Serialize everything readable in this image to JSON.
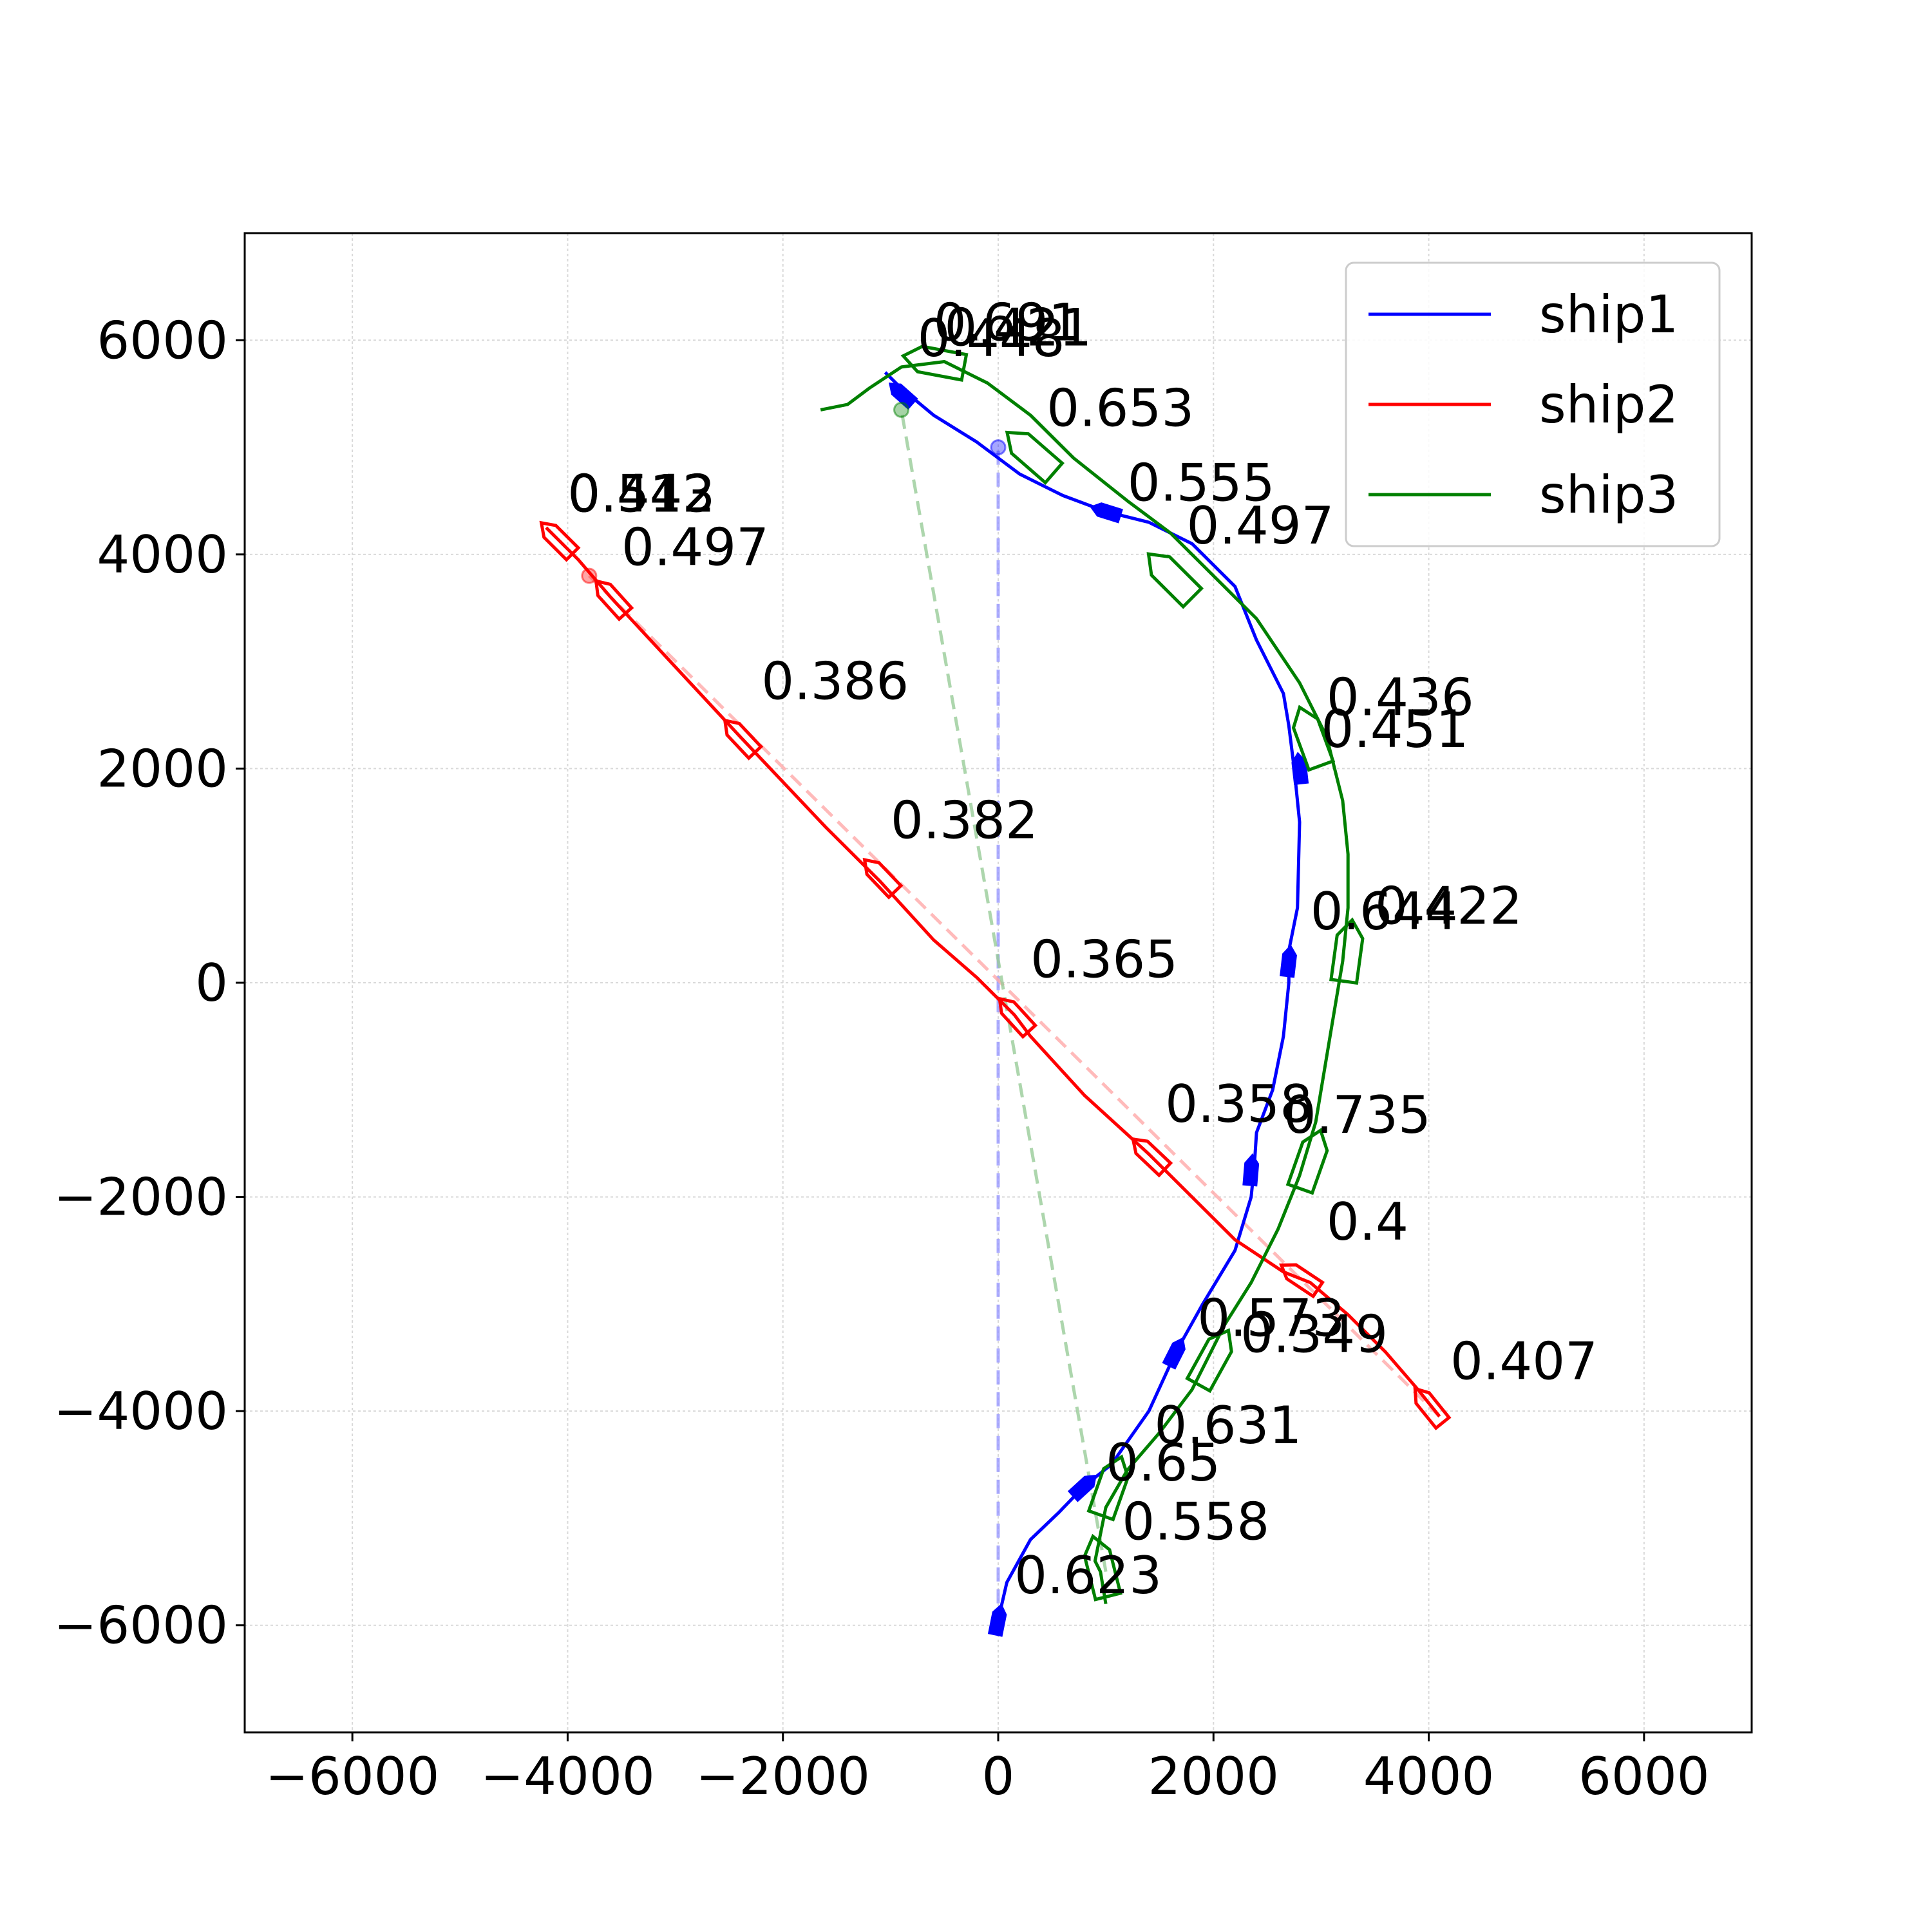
{
  "chart_data": {
    "type": "line",
    "title": "",
    "xlabel": "",
    "ylabel": "",
    "xlim": [
      -7000,
      7000
    ],
    "ylim": [
      -7000,
      7000
    ],
    "xticks": [
      -6000,
      -4000,
      -2000,
      0,
      2000,
      4000,
      6000
    ],
    "yticks": [
      -6000,
      -4000,
      -2000,
      0,
      2000,
      4000,
      6000
    ],
    "xtick_labels": [
      "−6000",
      "−4000",
      "−2000",
      "0",
      "2000",
      "4000",
      "6000"
    ],
    "ytick_labels": [
      "−6000",
      "−4000",
      "−2000",
      "0",
      "2000",
      "4000",
      "6000"
    ],
    "grid": true,
    "legend_position": "top-right",
    "series": [
      {
        "name": "ship1",
        "color": "#0000ff",
        "x": [
          0,
          0,
          80,
          300,
          560,
          800,
          1050,
          1400,
          1650,
          1900,
          2200,
          2350,
          2380,
          2400,
          2550,
          2650,
          2700,
          2700,
          2780,
          2800,
          2750,
          2700,
          2650,
          2400,
          2200,
          1800,
          1400,
          1000,
          600,
          200,
          -200,
          -600,
          -900,
          -1050
        ],
        "y": [
          -6000,
          -5950,
          -5600,
          -5200,
          -4950,
          -4700,
          -4500,
          -4000,
          -3450,
          -3000,
          -2500,
          -2000,
          -1700,
          -1400,
          -1000,
          -500,
          0,
          300,
          700,
          1500,
          2000,
          2400,
          2700,
          3200,
          3700,
          4100,
          4300,
          4400,
          4550,
          4750,
          5050,
          5300,
          5550,
          5700
        ],
        "markers": [
          {
            "x": 0,
            "y": -5950
          },
          {
            "x": 800,
            "y": -4700
          },
          {
            "x": 1650,
            "y": -3450
          },
          {
            "x": 2350,
            "y": -1750
          },
          {
            "x": 2700,
            "y": 200
          },
          {
            "x": 2800,
            "y": 2000
          },
          {
            "x": 1000,
            "y": 4400
          },
          {
            "x": -900,
            "y": 5500
          }
        ],
        "start": {
          "x": 0,
          "y": 5000
        }
      },
      {
        "name": "ship2",
        "color": "#ff0000",
        "x": [
          4100,
          3900,
          3600,
          3250,
          2900,
          2650,
          2200,
          1800,
          1400,
          800,
          300,
          150,
          -200,
          -600,
          -1100,
          -1600,
          -2400,
          -3000,
          -3600,
          -3900,
          -4100,
          -4200
        ],
        "y": [
          -4050,
          -3800,
          -3450,
          -3100,
          -2800,
          -2700,
          -2400,
          -2000,
          -1600,
          -1050,
          -500,
          -300,
          50,
          400,
          950,
          1450,
          2300,
          2950,
          3600,
          3950,
          4150,
          4250
        ],
        "markers": [
          {
            "x": 4000,
            "y": -3950
          },
          {
            "x": 2800,
            "y": -2750
          },
          {
            "x": 1400,
            "y": -1600
          },
          {
            "x": 150,
            "y": -300
          },
          {
            "x": -1100,
            "y": 1000
          },
          {
            "x": -2400,
            "y": 2300
          },
          {
            "x": -3600,
            "y": 3600
          },
          {
            "x": -4100,
            "y": 4150
          }
        ],
        "start": {
          "x": -3800,
          "y": 3800
        }
      },
      {
        "name": "ship3",
        "color": "#008000",
        "x": [
          1000,
          950,
          900,
          1000,
          1200,
          1500,
          1800,
          2100,
          2350,
          2600,
          2800,
          2950,
          3000,
          3100,
          3200,
          3250,
          3250,
          3200,
          3050,
          2800,
          2400,
          2000,
          1600,
          1200,
          700,
          300,
          -100,
          -500,
          -900,
          -1200,
          -1400,
          -1650
        ],
        "y": [
          -5800,
          -5500,
          -5400,
          -4900,
          -4550,
          -4200,
          -3800,
          -3200,
          -2800,
          -2300,
          -1800,
          -1300,
          -1000,
          -400,
          200,
          700,
          1200,
          1700,
          2300,
          2800,
          3400,
          3800,
          4200,
          4500,
          4900,
          5300,
          5600,
          5800,
          5750,
          5550,
          5400,
          5350
        ],
        "markers": [
          {
            "x": 950,
            "y": -5450
          },
          {
            "x": 1050,
            "y": -4700
          },
          {
            "x": 2000,
            "y": -3500
          },
          {
            "x": 2900,
            "y": -1650
          },
          {
            "x": 3250,
            "y": 300
          },
          {
            "x": 2900,
            "y": 2300
          },
          {
            "x": 1600,
            "y": 3800
          },
          {
            "x": 300,
            "y": 4950
          },
          {
            "x": -600,
            "y": 5800
          }
        ],
        "start": {
          "x": -900,
          "y": 5350
        }
      }
    ],
    "initial_guides": [
      {
        "series": "ship1",
        "color": "#9999ff",
        "x": [
          0,
          0
        ],
        "y": [
          -6000,
          5000
        ]
      },
      {
        "series": "ship2",
        "color": "#ffaaaa",
        "x": [
          4100,
          -3800
        ],
        "y": [
          -4050,
          3800
        ]
      },
      {
        "series": "ship3",
        "color": "#99cc99",
        "x": [
          1000,
          -900
        ],
        "y": [
          -5500,
          5350
        ]
      }
    ],
    "annotations": [
      {
        "text": "0.623",
        "x": 150,
        "y": -5700
      },
      {
        "text": "0.65",
        "x": 1000,
        "y": -4650
      },
      {
        "text": "0.573",
        "x": 1850,
        "y": -3300
      },
      {
        "text": "0.358",
        "x": 1550,
        "y": -1300
      },
      {
        "text": "0.644",
        "x": 2900,
        "y": 500
      },
      {
        "text": "0.451",
        "x": 3000,
        "y": 2200
      },
      {
        "text": "0.555",
        "x": 1200,
        "y": 4500
      },
      {
        "text": "0.421",
        "x": -500,
        "y": 5950
      },
      {
        "text": "0.407",
        "x": 4200,
        "y": -3700
      },
      {
        "text": "0.4",
        "x": 3050,
        "y": -2400
      },
      {
        "text": "0.365",
        "x": 300,
        "y": 50
      },
      {
        "text": "0.382",
        "x": -1000,
        "y": 1350
      },
      {
        "text": "0.386",
        "x": -2200,
        "y": 2650
      },
      {
        "text": "0.497",
        "x": -3500,
        "y": 3900
      },
      {
        "text": "0.543",
        "x": -4000,
        "y": 4400
      },
      {
        "text": "0.412",
        "x": -4000,
        "y": 4400
      },
      {
        "text": "0.558",
        "x": 1150,
        "y": -5200
      },
      {
        "text": "0.631",
        "x": 1450,
        "y": -4300
      },
      {
        "text": "0.349",
        "x": 2250,
        "y": -3450
      },
      {
        "text": "0.735",
        "x": 2650,
        "y": -1400
      },
      {
        "text": "0.422",
        "x": 3500,
        "y": 550
      },
      {
        "text": "0.436",
        "x": 3050,
        "y": 2500
      },
      {
        "text": "0.497",
        "x": 1750,
        "y": 4100
      },
      {
        "text": "0.653",
        "x": 450,
        "y": 5200
      },
      {
        "text": "0.448",
        "x": -750,
        "y": 5850
      },
      {
        "text": "0.691",
        "x": -600,
        "y": 6000
      }
    ]
  }
}
